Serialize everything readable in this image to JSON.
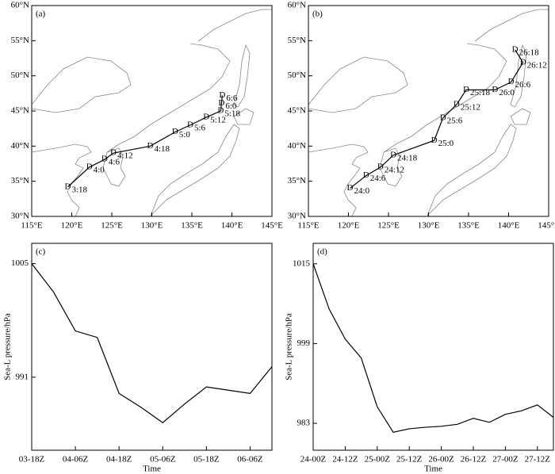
{
  "chart_data": [
    {
      "type": "track",
      "panel": "(a)",
      "marker": "D",
      "color": "#000000",
      "x": [
        119.5,
        122.2,
        124.1,
        125.2,
        129.8,
        132.9,
        134.8,
        136.8,
        138.6,
        138.7,
        138.8
      ],
      "y": [
        34.2,
        37.0,
        38.1,
        39.0,
        40.0,
        42.0,
        43.0,
        44.1,
        45.0,
        46.1,
        47.2
      ],
      "labels": [
        "3:18",
        "4:0",
        "4:6",
        "4:12",
        "4:18",
        "5:0",
        "5:6",
        "5:12",
        "5:18",
        "6:0",
        "6:6"
      ],
      "xlim": [
        115,
        145
      ],
      "ylim": [
        30,
        60
      ],
      "xticks": [
        {
          "value": 115,
          "label": "115°E"
        },
        {
          "value": 120,
          "label": "120°E"
        },
        {
          "value": 125,
          "label": "125°E"
        },
        {
          "value": 130,
          "label": "130°E"
        },
        {
          "value": 135,
          "label": "135°E"
        },
        {
          "value": 140,
          "label": "140°E"
        },
        {
          "value": 145,
          "label": "145°E"
        }
      ],
      "yticks": [
        {
          "value": 30,
          "label": "30°N"
        },
        {
          "value": 35,
          "label": "35°N"
        },
        {
          "value": 40,
          "label": "40°N"
        },
        {
          "value": 45,
          "label": "45°N"
        },
        {
          "value": 50,
          "label": "50°N"
        },
        {
          "value": 55,
          "label": "55°N"
        },
        {
          "value": 60,
          "label": "60°N"
        }
      ]
    },
    {
      "type": "track",
      "panel": "(b)",
      "marker": "D",
      "color": "#000000",
      "x": [
        120.2,
        122.2,
        124.0,
        125.6,
        130.7,
        131.8,
        133.5,
        134.7,
        138.3,
        140.3,
        141.8,
        140.8
      ],
      "y": [
        34.0,
        35.8,
        37.0,
        38.7,
        40.8,
        44.0,
        45.9,
        48.0,
        48.0,
        49.1,
        51.9,
        53.7
      ],
      "labels": [
        "24:0",
        "24:6",
        "24:12",
        "24:18",
        "25:0",
        "25:6",
        "25:12",
        "25:18",
        "26:0",
        "26:6",
        "26:12",
        "26:18"
      ],
      "xlim": [
        115,
        145
      ],
      "ylim": [
        30,
        60
      ],
      "xticks": [
        {
          "value": 115,
          "label": "115°E"
        },
        {
          "value": 120,
          "label": "120°E"
        },
        {
          "value": 125,
          "label": "125°E"
        },
        {
          "value": 130,
          "label": "130°E"
        },
        {
          "value": 135,
          "label": "135°E"
        },
        {
          "value": 140,
          "label": "140°E"
        },
        {
          "value": 145,
          "label": "145°E"
        }
      ],
      "yticks": [
        {
          "value": 30,
          "label": "30°N"
        },
        {
          "value": 35,
          "label": "35°N"
        },
        {
          "value": 40,
          "label": "40°N"
        },
        {
          "value": 45,
          "label": "45°N"
        },
        {
          "value": 50,
          "label": "50°N"
        },
        {
          "value": 55,
          "label": "55°N"
        },
        {
          "value": 60,
          "label": "60°N"
        }
      ]
    },
    {
      "type": "line",
      "panel": "(c)",
      "color": "#000000",
      "xlabel": "Time",
      "ylabel": "Sea-L pressure/hPa",
      "categories": [
        "03-18Z",
        null,
        "04-06Z",
        null,
        "04-18Z",
        null,
        "05-06Z",
        null,
        "05-18Z",
        null,
        "06-06Z",
        null
      ],
      "values": [
        1005.0,
        1001.5,
        996.7,
        995.9,
        989.0,
        987.3,
        985.4,
        987.7,
        989.8,
        989.4,
        989.0,
        992.3
      ],
      "ylim": [
        982,
        1007.5
      ],
      "yticks": [
        991,
        1005
      ]
    },
    {
      "type": "line",
      "panel": "(d)",
      "color": "#000000",
      "xlabel": "Time",
      "ylabel": "Sea-L pressure/hPa",
      "categories": [
        "24-00Z",
        null,
        "24-12Z",
        null,
        "25-00Z",
        null,
        "25-12Z",
        null,
        "26-00Z",
        null,
        "26-12Z",
        null,
        "27-00Z",
        null,
        "27-12Z",
        null
      ],
      "values": [
        1015.0,
        1005.9,
        999.9,
        996.1,
        986.3,
        981.2,
        981.9,
        982.2,
        982.4,
        982.8,
        984.0,
        983.2,
        984.8,
        985.5,
        986.7,
        984.2
      ],
      "ylim": [
        977.6,
        1019.1
      ],
      "yticks": [
        983,
        999,
        1015
      ]
    }
  ]
}
